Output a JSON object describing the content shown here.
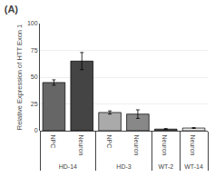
{
  "chart_data": {
    "type": "bar",
    "title": "(A)",
    "ylabel": "Relative Expression of HTT Exon 1",
    "categories": [
      "NPC",
      "Neuron",
      "NPC",
      "Neuron",
      "Neuron",
      "Neuron"
    ],
    "group": [
      "HD-14",
      "HD-14",
      "HD-3",
      "HD-3",
      "WT-2",
      "WT-14"
    ],
    "values": [
      45,
      65,
      17,
      15.5,
      1.5,
      2.5
    ],
    "errors": [
      2.5,
      8.0,
      1.5,
      4.0,
      0.5,
      0.4
    ],
    "colors": [
      "#666666",
      "#444444",
      "#aaaaaa",
      "#888888",
      "#555555",
      "#eeeeee"
    ],
    "ylim": [
      0,
      100
    ],
    "yticks": [
      0,
      25,
      50,
      75,
      100
    ],
    "grid": true
  }
}
